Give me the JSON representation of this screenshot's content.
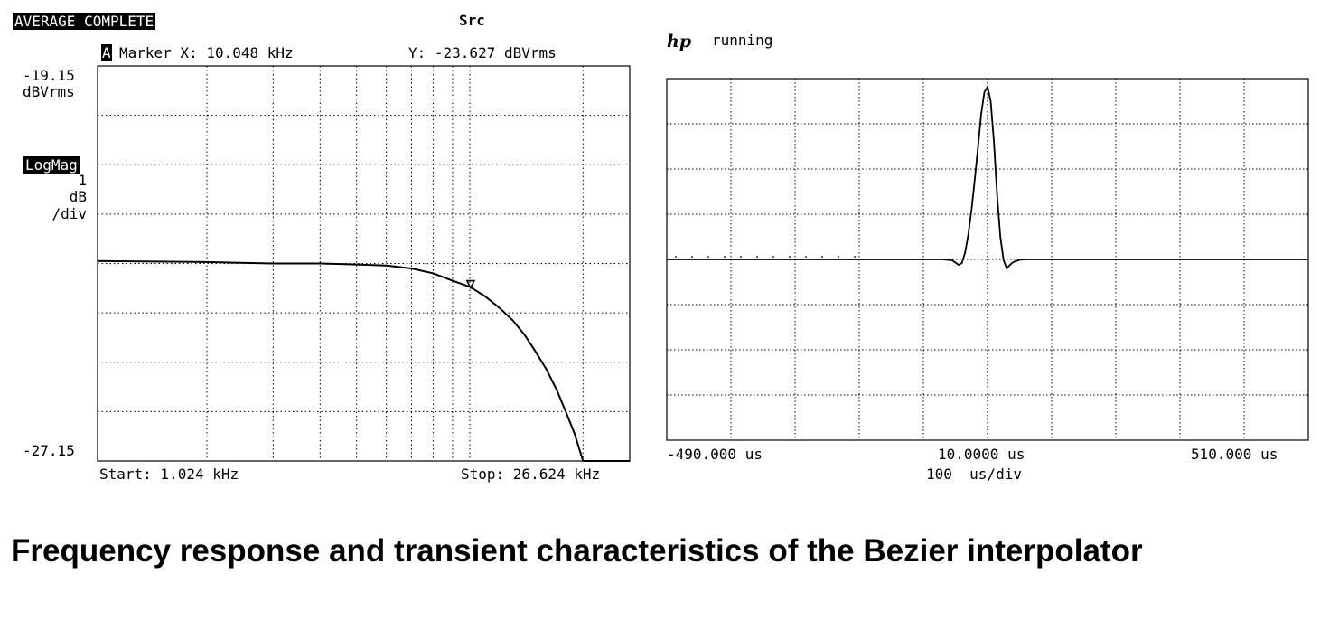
{
  "left_panel": {
    "status": "AVERAGE COMPLETE",
    "channel": "Src",
    "marker_badge": "A",
    "marker_x": "Marker X: 10.048 kHz",
    "marker_y": "Y: -23.627 dBVrms",
    "y_top": "-19.15",
    "y_unit": "dBVrms",
    "format": "LogMag",
    "scale_value": "1",
    "scale_unit": "dB",
    "scale_per": "/div",
    "y_bottom": "-27.15",
    "start": "Start: 1.024 kHz",
    "stop": "Stop: 26.624 kHz"
  },
  "right_panel": {
    "brand": "hp",
    "state": "running",
    "x_left": "-490.000 us",
    "x_center": "10.0000 us",
    "x_right": "510.000 us",
    "x_scale": "100  us/div"
  },
  "caption": "Frequency response and transient characteristics of the Bezier interpolator",
  "chart_data": [
    {
      "type": "line",
      "title": "",
      "xlabel": "",
      "ylabel": "dBVrms",
      "x_scale": "log",
      "xlim": [
        1.024,
        26.624
      ],
      "ylim": [
        -27.15,
        -19.15
      ],
      "y_per_div": 1,
      "grid": true,
      "marker": {
        "x": 10.048,
        "y": -23.627
      },
      "series": [
        {
          "x": [
            1.024,
            2.0,
            3.0,
            4.0,
            5.0,
            6.0,
            7.0,
            8.0,
            9.0,
            10.048,
            11.0,
            12.0,
            13.0,
            14.0,
            15.0,
            16.0,
            17.0,
            18.0,
            19.0,
            20.0,
            21.0,
            22.0,
            23.0,
            24.5,
            26.624
          ],
          "y": [
            -23.1,
            -23.12,
            -23.15,
            -23.15,
            -23.17,
            -23.19,
            -23.25,
            -23.35,
            -23.5,
            -23.627,
            -23.82,
            -24.05,
            -24.3,
            -24.6,
            -24.95,
            -25.3,
            -25.7,
            -26.15,
            -26.6,
            -27.15,
            -27.15,
            -27.15,
            -27.15,
            -27.15,
            -27.15
          ]
        }
      ]
    },
    {
      "type": "line",
      "title": "",
      "xlabel": "",
      "ylabel": "",
      "xlim": [
        -490,
        510
      ],
      "x_unit": "us",
      "x_per_div": 100,
      "grid": true,
      "series": [
        {
          "x": [
            -490,
            -60,
            -45,
            -35,
            -30,
            -25,
            -20,
            -15,
            -10,
            -5,
            0,
            5,
            10,
            15,
            20,
            25,
            30,
            35,
            40,
            45,
            50,
            60,
            70,
            80,
            510
          ],
          "y": [
            0,
            0,
            -0.02,
            -0.12,
            -0.08,
            0.15,
            0.55,
            1.1,
            1.75,
            2.45,
            3.2,
            3.7,
            3.82,
            3.5,
            2.6,
            1.4,
            0.5,
            -0.02,
            -0.2,
            -0.12,
            -0.06,
            -0.01,
            0,
            0,
            0
          ]
        }
      ]
    }
  ]
}
